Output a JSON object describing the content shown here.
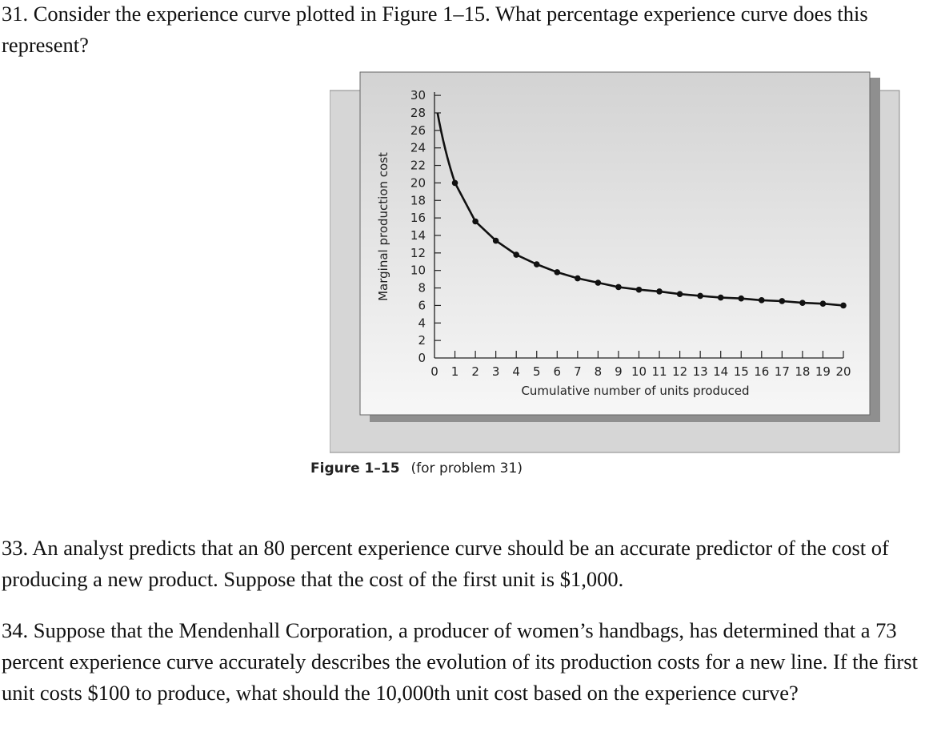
{
  "problems": {
    "p31": "31. Consider the experience curve plotted in Figure 1–15. What percentage experience curve does this represent?",
    "p33": "33. An analyst predicts that an 80 percent experience curve should be an accurate predictor of the cost of producing a new product. Suppose that the cost of the first unit is $1,000.",
    "p34": "34. Suppose that the Mendenhall Corporation, a producer of women’s handbags, has determined that a 73 percent experience curve accurately describes the evolution of its production costs for a new line. If the first unit costs $100 to produce, what should the 10,000th unit cost based on the experience curve?"
  },
  "figure": {
    "label": "Figure 1–15",
    "caption": "(for problem 31)"
  },
  "chart_data": {
    "type": "line",
    "xlabel": "Cumulative number of units produced",
    "ylabel": "Marginal production cost",
    "xlim": [
      0,
      20
    ],
    "ylim": [
      0,
      30
    ],
    "x_ticks": [
      0,
      1,
      2,
      3,
      4,
      5,
      6,
      7,
      8,
      9,
      10,
      11,
      12,
      13,
      14,
      15,
      16,
      17,
      18,
      19,
      20
    ],
    "y_ticks": [
      0,
      2,
      4,
      6,
      8,
      10,
      12,
      14,
      16,
      18,
      20,
      22,
      24,
      26,
      28,
      30
    ],
    "series": [
      {
        "x": [
          1,
          2,
          3,
          4,
          5,
          6,
          7,
          8,
          9,
          10,
          11,
          12,
          13,
          14,
          15,
          16,
          17,
          18,
          19,
          20
        ],
        "y": [
          20.0,
          15.6,
          13.4,
          11.8,
          10.7,
          9.8,
          9.1,
          8.6,
          8.1,
          7.8,
          7.6,
          7.3,
          7.1,
          6.9,
          6.8,
          6.6,
          6.5,
          6.3,
          6.2,
          6.0
        ]
      }
    ],
    "curve_start": {
      "x": 0.15,
      "y": 28
    },
    "grid": false,
    "legend": "none"
  }
}
